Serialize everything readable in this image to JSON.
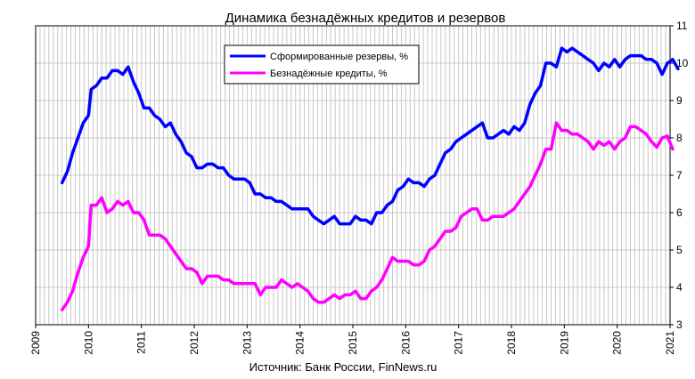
{
  "chart_data": {
    "type": "line",
    "title": "Динамика безнадёжных кредитов и резервов",
    "source": "Источник: Банк России, FinNews.ru",
    "x_axis": {
      "min": 2009,
      "max": 2021,
      "ticks": [
        "2009",
        "2010",
        "2011",
        "2012",
        "2013",
        "2014",
        "2015",
        "2016",
        "2017",
        "2018",
        "2019",
        "2020",
        "2021"
      ]
    },
    "y_axis": {
      "side": "right",
      "min": 3,
      "max": 11,
      "ticks": [
        "3",
        "4",
        "5",
        "6",
        "7",
        "8",
        "9",
        "10",
        "11"
      ]
    },
    "grid": true,
    "legend": {
      "placement": "top-center"
    },
    "series": [
      {
        "name": "Сформированные резервы, %",
        "color": "#0000ff",
        "points": [
          [
            2009.5,
            6.8
          ],
          [
            2009.6,
            7.1
          ],
          [
            2009.7,
            7.6
          ],
          [
            2009.8,
            8.0
          ],
          [
            2009.9,
            8.4
          ],
          [
            2010.0,
            8.6
          ],
          [
            2010.05,
            9.3
          ],
          [
            2010.15,
            9.4
          ],
          [
            2010.25,
            9.6
          ],
          [
            2010.35,
            9.6
          ],
          [
            2010.45,
            9.8
          ],
          [
            2010.55,
            9.8
          ],
          [
            2010.65,
            9.7
          ],
          [
            2010.75,
            9.9
          ],
          [
            2010.85,
            9.5
          ],
          [
            2010.95,
            9.2
          ],
          [
            2011.05,
            8.8
          ],
          [
            2011.15,
            8.8
          ],
          [
            2011.25,
            8.6
          ],
          [
            2011.35,
            8.5
          ],
          [
            2011.45,
            8.3
          ],
          [
            2011.55,
            8.4
          ],
          [
            2011.65,
            8.1
          ],
          [
            2011.75,
            7.9
          ],
          [
            2011.85,
            7.6
          ],
          [
            2011.95,
            7.5
          ],
          [
            2012.05,
            7.2
          ],
          [
            2012.15,
            7.2
          ],
          [
            2012.25,
            7.3
          ],
          [
            2012.35,
            7.3
          ],
          [
            2012.45,
            7.2
          ],
          [
            2012.55,
            7.2
          ],
          [
            2012.65,
            7.0
          ],
          [
            2012.75,
            6.9
          ],
          [
            2012.85,
            6.9
          ],
          [
            2012.95,
            6.9
          ],
          [
            2013.05,
            6.8
          ],
          [
            2013.15,
            6.5
          ],
          [
            2013.25,
            6.5
          ],
          [
            2013.35,
            6.4
          ],
          [
            2013.45,
            6.4
          ],
          [
            2013.55,
            6.3
          ],
          [
            2013.65,
            6.3
          ],
          [
            2013.75,
            6.2
          ],
          [
            2013.85,
            6.1
          ],
          [
            2013.95,
            6.1
          ],
          [
            2014.05,
            6.1
          ],
          [
            2014.15,
            6.1
          ],
          [
            2014.25,
            5.9
          ],
          [
            2014.35,
            5.8
          ],
          [
            2014.45,
            5.7
          ],
          [
            2014.55,
            5.8
          ],
          [
            2014.65,
            5.9
          ],
          [
            2014.75,
            5.7
          ],
          [
            2014.85,
            5.7
          ],
          [
            2014.95,
            5.7
          ],
          [
            2015.05,
            5.9
          ],
          [
            2015.15,
            5.8
          ],
          [
            2015.25,
            5.8
          ],
          [
            2015.35,
            5.7
          ],
          [
            2015.45,
            6.0
          ],
          [
            2015.55,
            6.0
          ],
          [
            2015.65,
            6.2
          ],
          [
            2015.75,
            6.3
          ],
          [
            2015.85,
            6.6
          ],
          [
            2015.95,
            6.7
          ],
          [
            2016.05,
            6.9
          ],
          [
            2016.15,
            6.8
          ],
          [
            2016.25,
            6.8
          ],
          [
            2016.35,
            6.7
          ],
          [
            2016.45,
            6.9
          ],
          [
            2016.55,
            7.0
          ],
          [
            2016.65,
            7.3
          ],
          [
            2016.75,
            7.6
          ],
          [
            2016.85,
            7.7
          ],
          [
            2016.95,
            7.9
          ],
          [
            2017.05,
            8.0
          ],
          [
            2017.15,
            8.1
          ],
          [
            2017.25,
            8.2
          ],
          [
            2017.35,
            8.3
          ],
          [
            2017.45,
            8.4
          ],
          [
            2017.55,
            8.0
          ],
          [
            2017.65,
            8.0
          ],
          [
            2017.75,
            8.1
          ],
          [
            2017.85,
            8.2
          ],
          [
            2017.95,
            8.1
          ],
          [
            2018.05,
            8.3
          ],
          [
            2018.15,
            8.2
          ],
          [
            2018.25,
            8.4
          ],
          [
            2018.35,
            8.9
          ],
          [
            2018.45,
            9.2
          ],
          [
            2018.55,
            9.4
          ],
          [
            2018.65,
            10.0
          ],
          [
            2018.75,
            10.0
          ],
          [
            2018.85,
            9.9
          ],
          [
            2018.95,
            10.4
          ],
          [
            2019.05,
            10.3
          ],
          [
            2019.15,
            10.4
          ],
          [
            2019.25,
            10.3
          ],
          [
            2019.35,
            10.2
          ],
          [
            2019.45,
            10.1
          ],
          [
            2019.55,
            10.0
          ],
          [
            2019.65,
            9.8
          ],
          [
            2019.75,
            10.0
          ],
          [
            2019.85,
            9.9
          ],
          [
            2019.95,
            10.1
          ],
          [
            2020.05,
            9.9
          ],
          [
            2020.15,
            10.1
          ],
          [
            2020.25,
            10.2
          ],
          [
            2020.35,
            10.2
          ],
          [
            2020.45,
            10.2
          ],
          [
            2020.55,
            10.1
          ],
          [
            2020.65,
            10.1
          ],
          [
            2020.75,
            10.0
          ],
          [
            2020.85,
            9.7
          ],
          [
            2020.95,
            10.0
          ],
          [
            2021.05,
            10.1
          ],
          [
            2021.15,
            9.85
          ]
        ]
      },
      {
        "name": "Безнадёжные кредиты, %",
        "color": "#ff00ff",
        "points": [
          [
            2009.5,
            3.4
          ],
          [
            2009.6,
            3.6
          ],
          [
            2009.7,
            3.9
          ],
          [
            2009.8,
            4.4
          ],
          [
            2009.9,
            4.8
          ],
          [
            2010.0,
            5.1
          ],
          [
            2010.05,
            6.2
          ],
          [
            2010.15,
            6.2
          ],
          [
            2010.25,
            6.4
          ],
          [
            2010.35,
            6.0
          ],
          [
            2010.45,
            6.1
          ],
          [
            2010.55,
            6.3
          ],
          [
            2010.65,
            6.2
          ],
          [
            2010.75,
            6.3
          ],
          [
            2010.85,
            6.0
          ],
          [
            2010.95,
            6.0
          ],
          [
            2011.05,
            5.8
          ],
          [
            2011.15,
            5.4
          ],
          [
            2011.25,
            5.4
          ],
          [
            2011.35,
            5.4
          ],
          [
            2011.45,
            5.3
          ],
          [
            2011.55,
            5.1
          ],
          [
            2011.65,
            4.9
          ],
          [
            2011.75,
            4.7
          ],
          [
            2011.85,
            4.5
          ],
          [
            2011.95,
            4.5
          ],
          [
            2012.05,
            4.4
          ],
          [
            2012.15,
            4.1
          ],
          [
            2012.25,
            4.3
          ],
          [
            2012.35,
            4.3
          ],
          [
            2012.45,
            4.3
          ],
          [
            2012.55,
            4.2
          ],
          [
            2012.65,
            4.2
          ],
          [
            2012.75,
            4.1
          ],
          [
            2012.85,
            4.1
          ],
          [
            2012.95,
            4.1
          ],
          [
            2013.05,
            4.1
          ],
          [
            2013.15,
            4.1
          ],
          [
            2013.25,
            3.8
          ],
          [
            2013.35,
            4.0
          ],
          [
            2013.45,
            4.0
          ],
          [
            2013.55,
            4.0
          ],
          [
            2013.65,
            4.2
          ],
          [
            2013.75,
            4.1
          ],
          [
            2013.85,
            4.0
          ],
          [
            2013.95,
            4.1
          ],
          [
            2014.05,
            4.0
          ],
          [
            2014.15,
            3.9
          ],
          [
            2014.25,
            3.7
          ],
          [
            2014.35,
            3.6
          ],
          [
            2014.45,
            3.6
          ],
          [
            2014.55,
            3.7
          ],
          [
            2014.65,
            3.8
          ],
          [
            2014.75,
            3.7
          ],
          [
            2014.85,
            3.8
          ],
          [
            2014.95,
            3.8
          ],
          [
            2015.05,
            3.9
          ],
          [
            2015.15,
            3.7
          ],
          [
            2015.25,
            3.7
          ],
          [
            2015.35,
            3.9
          ],
          [
            2015.45,
            4.0
          ],
          [
            2015.55,
            4.2
          ],
          [
            2015.65,
            4.5
          ],
          [
            2015.75,
            4.8
          ],
          [
            2015.85,
            4.7
          ],
          [
            2015.95,
            4.7
          ],
          [
            2016.05,
            4.7
          ],
          [
            2016.15,
            4.6
          ],
          [
            2016.25,
            4.6
          ],
          [
            2016.35,
            4.7
          ],
          [
            2016.45,
            5.0
          ],
          [
            2016.55,
            5.1
          ],
          [
            2016.65,
            5.3
          ],
          [
            2016.75,
            5.5
          ],
          [
            2016.85,
            5.5
          ],
          [
            2016.95,
            5.6
          ],
          [
            2017.05,
            5.9
          ],
          [
            2017.15,
            6.0
          ],
          [
            2017.25,
            6.1
          ],
          [
            2017.35,
            6.1
          ],
          [
            2017.45,
            5.8
          ],
          [
            2017.55,
            5.8
          ],
          [
            2017.65,
            5.9
          ],
          [
            2017.75,
            5.9
          ],
          [
            2017.85,
            5.9
          ],
          [
            2017.95,
            6.0
          ],
          [
            2018.05,
            6.1
          ],
          [
            2018.15,
            6.3
          ],
          [
            2018.25,
            6.5
          ],
          [
            2018.35,
            6.7
          ],
          [
            2018.45,
            7.0
          ],
          [
            2018.55,
            7.3
          ],
          [
            2018.65,
            7.7
          ],
          [
            2018.75,
            7.7
          ],
          [
            2018.85,
            8.4
          ],
          [
            2018.95,
            8.2
          ],
          [
            2019.05,
            8.2
          ],
          [
            2019.15,
            8.1
          ],
          [
            2019.25,
            8.1
          ],
          [
            2019.35,
            8.0
          ],
          [
            2019.45,
            7.9
          ],
          [
            2019.55,
            7.7
          ],
          [
            2019.65,
            7.9
          ],
          [
            2019.75,
            7.8
          ],
          [
            2019.85,
            7.9
          ],
          [
            2019.95,
            7.7
          ],
          [
            2020.05,
            7.9
          ],
          [
            2020.15,
            8.0
          ],
          [
            2020.25,
            8.3
          ],
          [
            2020.35,
            8.3
          ],
          [
            2020.45,
            8.2
          ],
          [
            2020.55,
            8.1
          ],
          [
            2020.65,
            7.9
          ],
          [
            2020.75,
            7.75
          ],
          [
            2020.85,
            8.0
          ],
          [
            2020.95,
            8.05
          ],
          [
            2021.05,
            7.7
          ]
        ]
      }
    ]
  }
}
